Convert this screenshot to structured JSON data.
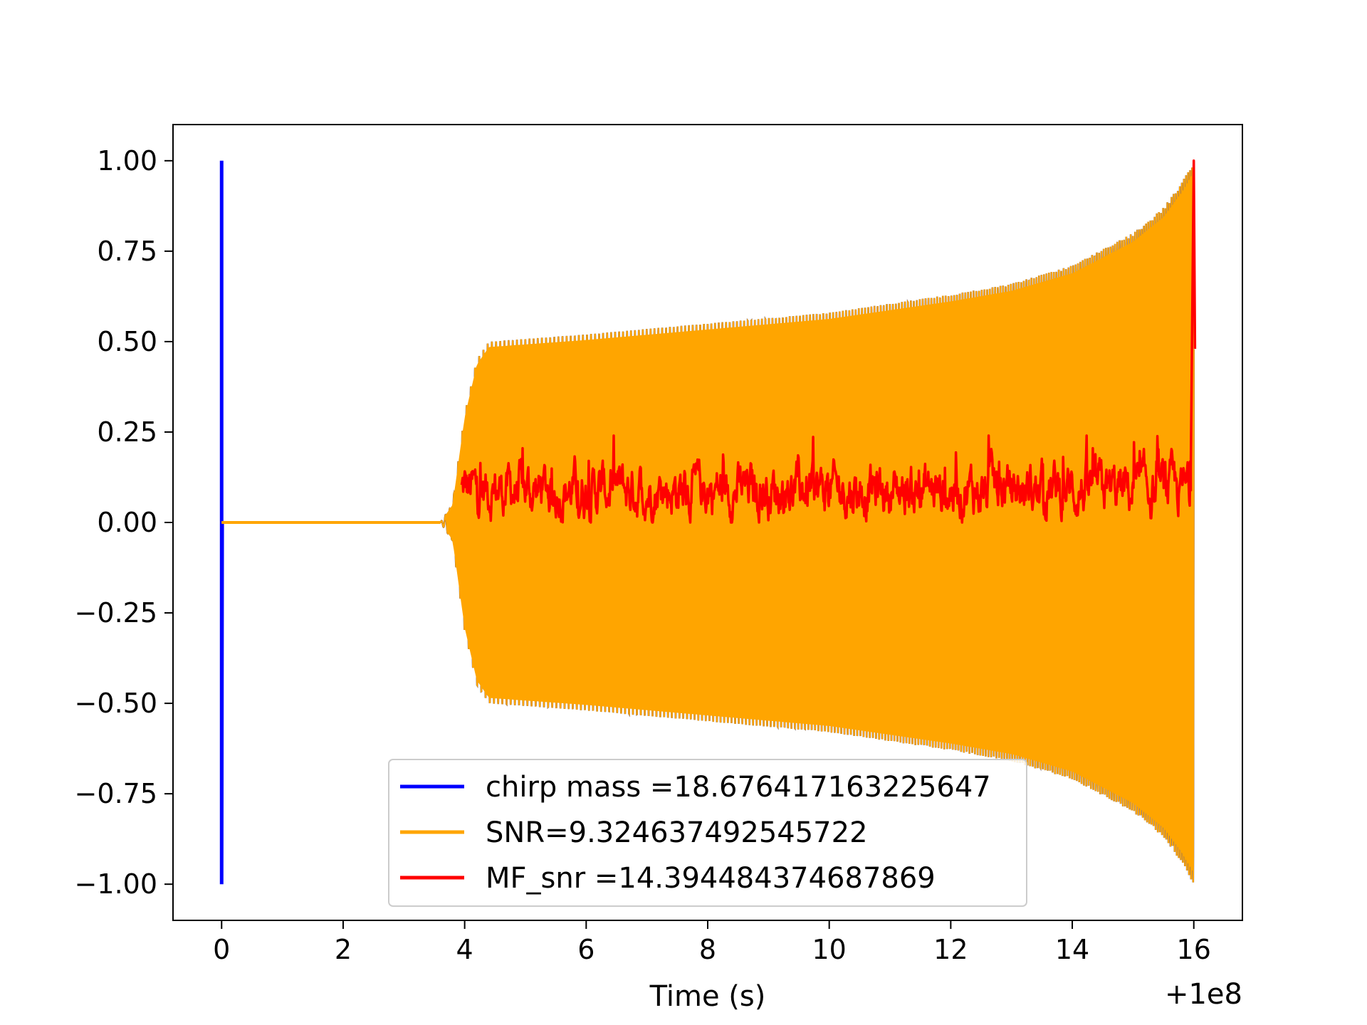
{
  "chart_data": {
    "type": "line",
    "title": "",
    "xlabel": "Time (s)",
    "ylabel": "",
    "x_offset_label": "+1e8",
    "xlim": [
      -0.8,
      16.8
    ],
    "ylim": [
      -1.1,
      1.1
    ],
    "xticks": [
      0,
      2,
      4,
      6,
      8,
      10,
      12,
      14,
      16
    ],
    "xtick_labels": [
      "0",
      "2",
      "4",
      "6",
      "8",
      "10",
      "12",
      "14",
      "16"
    ],
    "yticks": [
      1.0,
      0.75,
      0.5,
      0.25,
      0.0,
      -0.25,
      -0.5,
      -0.75,
      -1.0
    ],
    "ytick_labels": [
      "1.00",
      "0.75",
      "0.50",
      "0.25",
      "0.00",
      "−0.25",
      "−0.50",
      "−0.75",
      "−1.00"
    ],
    "grid": false,
    "legend_position": "lower-center",
    "series": [
      {
        "name": "chirp mass =18.676417163225647",
        "color": "#0000ff",
        "x": [
          0,
          0,
          0,
          0.01,
          16
        ],
        "y": [
          1.0,
          0.0,
          -1.0,
          0.0,
          0.0
        ]
      },
      {
        "name": "SNR=9.324637492545722",
        "color": "#ffa500",
        "envelope": {
          "x": [
            0,
            3.6,
            3.8,
            4.0,
            4.2,
            4.4,
            6,
            8,
            10,
            12,
            13,
            14,
            15,
            15.5,
            15.8,
            16.0
          ],
          "amp": [
            0.0,
            0.0,
            0.05,
            0.3,
            0.45,
            0.5,
            0.52,
            0.55,
            0.58,
            0.63,
            0.66,
            0.71,
            0.8,
            0.87,
            0.94,
            1.0
          ]
        }
      },
      {
        "name": "MF_snr =14.394484374687869",
        "color": "#ff0000",
        "x_start": 3.95,
        "x_end": 15.95,
        "baseline": 0.09,
        "noise_min": 0.0,
        "noise_max": 0.24,
        "spike": {
          "x": [
            15.95,
            16.0,
            16.02
          ],
          "y": [
            0.15,
            1.0,
            0.48
          ]
        }
      }
    ]
  }
}
